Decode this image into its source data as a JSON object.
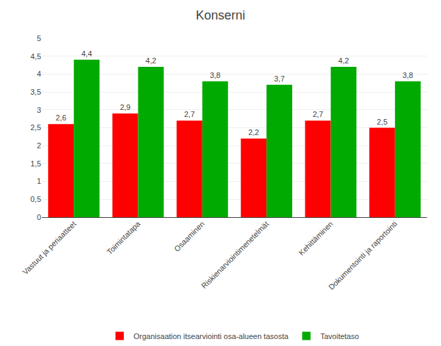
{
  "chart_data": {
    "type": "bar",
    "title": "Konserni",
    "categories": [
      "Vastuut ja periaatteet",
      "Toimintatapa",
      "Osaaminen",
      "Riskienarviointimenetelmät",
      "Kehittäminen",
      "Dokumentointi ja raportointi"
    ],
    "series": [
      {
        "name": "Organisaation itsearviointi osa-alueen tasosta",
        "color": "#ff0000",
        "values": [
          2.6,
          2.9,
          2.7,
          2.2,
          2.7,
          2.5
        ],
        "value_labels": [
          "2,6",
          "2,9",
          "2,7",
          "2,2",
          "2,7",
          "2,5"
        ]
      },
      {
        "name": "Tavoitetaso",
        "color": "#00aa00",
        "values": [
          4.4,
          4.2,
          3.8,
          3.7,
          4.2,
          3.8
        ],
        "value_labels": [
          "4,4",
          "4,2",
          "3,8",
          "3,7",
          "4,2",
          "3,8"
        ]
      }
    ],
    "ylim": [
      0,
      5
    ],
    "yticks": [
      0,
      {
        "value": 0.5,
        "label": "0,5"
      },
      1,
      {
        "value": 1.5,
        "label": "1,5"
      },
      2,
      {
        "value": 2.5,
        "label": "2,5"
      },
      3,
      {
        "value": 3.5,
        "label": "3,5"
      },
      4,
      {
        "value": 4.5,
        "label": "4,5"
      },
      5
    ],
    "grid": true,
    "data_labels": true,
    "legend": "bottom"
  }
}
